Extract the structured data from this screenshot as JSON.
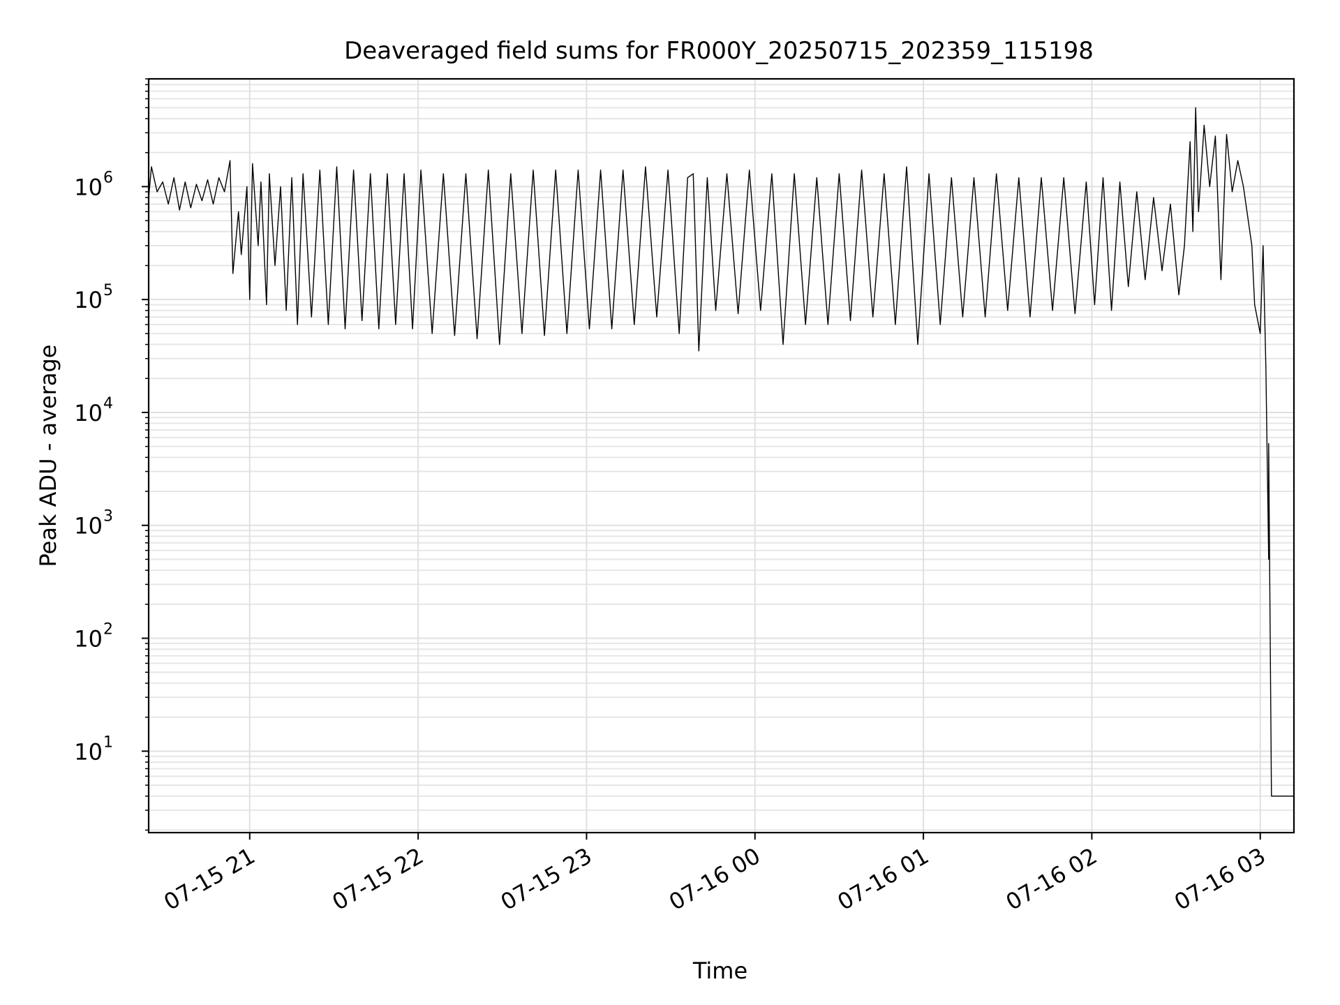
{
  "chart_data": {
    "type": "line",
    "title": "Deaveraged field sums for FR000Y_20250715_202359_115198",
    "xlabel": "Time",
    "ylabel": "Peak ADU - average",
    "yscale": "log",
    "ylim": [
      1.9,
      9000000
    ],
    "xlim": [
      "2025-07-15 20:24",
      "2025-07-16 03:12"
    ],
    "grid": true,
    "x_ticks": [
      {
        "value": "2025-07-15 21:00",
        "label": "07-15 21"
      },
      {
        "value": "2025-07-15 22:00",
        "label": "07-15 22"
      },
      {
        "value": "2025-07-15 23:00",
        "label": "07-15 23"
      },
      {
        "value": "2025-07-16 00:00",
        "label": "07-16 00"
      },
      {
        "value": "2025-07-16 01:00",
        "label": "07-16 01"
      },
      {
        "value": "2025-07-16 02:00",
        "label": "07-16 02"
      },
      {
        "value": "2025-07-16 03:00",
        "label": "07-16 03"
      }
    ],
    "y_ticks": [
      {
        "value": 10,
        "base": "10",
        "exp": "1"
      },
      {
        "value": 100,
        "base": "10",
        "exp": "2"
      },
      {
        "value": 1000,
        "base": "10",
        "exp": "3"
      },
      {
        "value": 10000,
        "base": "10",
        "exp": "4"
      },
      {
        "value": 100000,
        "base": "10",
        "exp": "5"
      },
      {
        "value": 1000000,
        "base": "10",
        "exp": "6"
      }
    ],
    "series": [
      {
        "color": "#000000",
        "points": [
          [
            "2025-07-15 20:24",
            800000
          ],
          [
            "2025-07-15 20:25",
            1500000
          ],
          [
            "2025-07-15 20:27",
            900000
          ],
          [
            "2025-07-15 20:29",
            1100000
          ],
          [
            "2025-07-15 20:31",
            700000
          ],
          [
            "2025-07-15 20:33",
            1200000
          ],
          [
            "2025-07-15 20:35",
            620000
          ],
          [
            "2025-07-15 20:37",
            1100000
          ],
          [
            "2025-07-15 20:39",
            650000
          ],
          [
            "2025-07-15 20:41",
            1050000
          ],
          [
            "2025-07-15 20:43",
            750000
          ],
          [
            "2025-07-15 20:45",
            1150000
          ],
          [
            "2025-07-15 20:47",
            700000
          ],
          [
            "2025-07-15 20:49",
            1200000
          ],
          [
            "2025-07-15 20:51",
            900000
          ],
          [
            "2025-07-15 20:53",
            1700000
          ],
          [
            "2025-07-15 20:54",
            170000
          ],
          [
            "2025-07-15 20:56",
            600000
          ],
          [
            "2025-07-15 20:57",
            250000
          ],
          [
            "2025-07-15 20:59",
            1000000
          ],
          [
            "2025-07-15 21:00",
            100000
          ],
          [
            "2025-07-15 21:01",
            1600000
          ],
          [
            "2025-07-15 21:03",
            300000
          ],
          [
            "2025-07-15 21:04",
            1100000
          ],
          [
            "2025-07-15 21:06",
            90000
          ],
          [
            "2025-07-15 21:07",
            1300000
          ],
          [
            "2025-07-15 21:09",
            200000
          ],
          [
            "2025-07-15 21:11",
            1000000
          ],
          [
            "2025-07-15 21:13",
            80000
          ],
          [
            "2025-07-15 21:15",
            1200000
          ],
          [
            "2025-07-15 21:17",
            60000
          ],
          [
            "2025-07-15 21:19",
            1300000
          ],
          [
            "2025-07-15 21:22",
            70000
          ],
          [
            "2025-07-15 21:25",
            1400000
          ],
          [
            "2025-07-15 21:28",
            60000
          ],
          [
            "2025-07-15 21:31",
            1500000
          ],
          [
            "2025-07-15 21:34",
            55000
          ],
          [
            "2025-07-15 21:37",
            1400000
          ],
          [
            "2025-07-15 21:40",
            65000
          ],
          [
            "2025-07-15 21:43",
            1300000
          ],
          [
            "2025-07-15 21:46",
            55000
          ],
          [
            "2025-07-15 21:49",
            1300000
          ],
          [
            "2025-07-15 21:52",
            60000
          ],
          [
            "2025-07-15 21:55",
            1300000
          ],
          [
            "2025-07-15 21:58",
            55000
          ],
          [
            "2025-07-15 22:01",
            1400000
          ],
          [
            "2025-07-15 22:05",
            50000
          ],
          [
            "2025-07-15 22:09",
            1300000
          ],
          [
            "2025-07-15 22:13",
            48000
          ],
          [
            "2025-07-15 22:17",
            1300000
          ],
          [
            "2025-07-15 22:21",
            45000
          ],
          [
            "2025-07-15 22:25",
            1400000
          ],
          [
            "2025-07-15 22:29",
            40000
          ],
          [
            "2025-07-15 22:33",
            1300000
          ],
          [
            "2025-07-15 22:37",
            50000
          ],
          [
            "2025-07-15 22:41",
            1400000
          ],
          [
            "2025-07-15 22:45",
            48000
          ],
          [
            "2025-07-15 22:49",
            1400000
          ],
          [
            "2025-07-15 22:53",
            50000
          ],
          [
            "2025-07-15 22:57",
            1400000
          ],
          [
            "2025-07-15 23:01",
            55000
          ],
          [
            "2025-07-15 23:05",
            1400000
          ],
          [
            "2025-07-15 23:09",
            55000
          ],
          [
            "2025-07-15 23:13",
            1400000
          ],
          [
            "2025-07-15 23:17",
            60000
          ],
          [
            "2025-07-15 23:21",
            1500000
          ],
          [
            "2025-07-15 23:25",
            70000
          ],
          [
            "2025-07-15 23:29",
            1400000
          ],
          [
            "2025-07-15 23:33",
            50000
          ],
          [
            "2025-07-15 23:36",
            1200000
          ],
          [
            "2025-07-15 23:38",
            1300000
          ],
          [
            "2025-07-15 23:40",
            35000
          ],
          [
            "2025-07-15 23:43",
            1200000
          ],
          [
            "2025-07-15 23:46",
            80000
          ],
          [
            "2025-07-15 23:50",
            1300000
          ],
          [
            "2025-07-15 23:54",
            75000
          ],
          [
            "2025-07-15 23:58",
            1400000
          ],
          [
            "2025-07-16 00:02",
            80000
          ],
          [
            "2025-07-16 00:06",
            1300000
          ],
          [
            "2025-07-16 00:10",
            40000
          ],
          [
            "2025-07-16 00:14",
            1300000
          ],
          [
            "2025-07-16 00:18",
            60000
          ],
          [
            "2025-07-16 00:22",
            1200000
          ],
          [
            "2025-07-16 00:26",
            60000
          ],
          [
            "2025-07-16 00:30",
            1300000
          ],
          [
            "2025-07-16 00:34",
            65000
          ],
          [
            "2025-07-16 00:38",
            1400000
          ],
          [
            "2025-07-16 00:42",
            70000
          ],
          [
            "2025-07-16 00:46",
            1300000
          ],
          [
            "2025-07-16 00:50",
            60000
          ],
          [
            "2025-07-16 00:54",
            1500000
          ],
          [
            "2025-07-16 00:58",
            40000
          ],
          [
            "2025-07-16 01:02",
            1300000
          ],
          [
            "2025-07-16 01:06",
            60000
          ],
          [
            "2025-07-16 01:10",
            1200000
          ],
          [
            "2025-07-16 01:14",
            70000
          ],
          [
            "2025-07-16 01:18",
            1200000
          ],
          [
            "2025-07-16 01:22",
            70000
          ],
          [
            "2025-07-16 01:26",
            1300000
          ],
          [
            "2025-07-16 01:30",
            80000
          ],
          [
            "2025-07-16 01:34",
            1200000
          ],
          [
            "2025-07-16 01:38",
            70000
          ],
          [
            "2025-07-16 01:42",
            1200000
          ],
          [
            "2025-07-16 01:46",
            80000
          ],
          [
            "2025-07-16 01:50",
            1200000
          ],
          [
            "2025-07-16 01:54",
            75000
          ],
          [
            "2025-07-16 01:58",
            1100000
          ],
          [
            "2025-07-16 02:01",
            90000
          ],
          [
            "2025-07-16 02:04",
            1200000
          ],
          [
            "2025-07-16 02:07",
            80000
          ],
          [
            "2025-07-16 02:10",
            1100000
          ],
          [
            "2025-07-16 02:13",
            130000
          ],
          [
            "2025-07-16 02:16",
            900000
          ],
          [
            "2025-07-16 02:19",
            150000
          ],
          [
            "2025-07-16 02:22",
            800000
          ],
          [
            "2025-07-16 02:25",
            180000
          ],
          [
            "2025-07-16 02:28",
            700000
          ],
          [
            "2025-07-16 02:31",
            110000
          ],
          [
            "2025-07-16 02:33",
            300000
          ],
          [
            "2025-07-16 02:35",
            2500000
          ],
          [
            "2025-07-16 02:36",
            400000
          ],
          [
            "2025-07-16 02:37",
            5000000
          ],
          [
            "2025-07-16 02:38",
            600000
          ],
          [
            "2025-07-16 02:40",
            3500000
          ],
          [
            "2025-07-16 02:42",
            1000000
          ],
          [
            "2025-07-16 02:44",
            2800000
          ],
          [
            "2025-07-16 02:46",
            150000
          ],
          [
            "2025-07-16 02:48",
            2900000
          ],
          [
            "2025-07-16 02:50",
            900000
          ],
          [
            "2025-07-16 02:52",
            1700000
          ],
          [
            "2025-07-16 02:54",
            1000000
          ],
          [
            "2025-07-16 02:57",
            300000
          ],
          [
            "2025-07-16 02:58",
            90000
          ],
          [
            "2025-07-16 03:00",
            50000
          ],
          [
            "2025-07-16 03:01",
            300000
          ],
          [
            "2025-07-16 03:02",
            25000
          ],
          [
            "2025-07-16 03:03",
            500
          ],
          [
            "2025-07-16 03:03",
            5300
          ],
          [
            "2025-07-16 03:04",
            4
          ],
          [
            "2025-07-16 03:12",
            4
          ]
        ]
      }
    ]
  }
}
